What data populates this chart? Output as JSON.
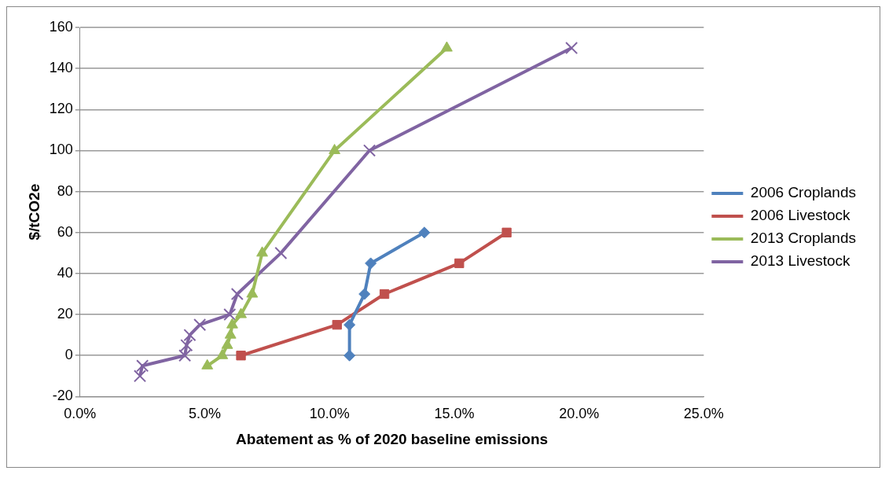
{
  "chart_data": {
    "type": "line",
    "xlabel": "Abatement as % of 2020 baseline emissions",
    "ylabel": "$/tCO2e",
    "xlim": [
      0,
      25
    ],
    "xticks": [
      {
        "value": 0,
        "label": "0.0%"
      },
      {
        "value": 5,
        "label": "5.0%"
      },
      {
        "value": 10,
        "label": "10.0%"
      },
      {
        "value": 15,
        "label": "15.0%"
      },
      {
        "value": 20,
        "label": "20.0%"
      },
      {
        "value": 25,
        "label": "25.0%"
      }
    ],
    "ylim": [
      -20,
      160
    ],
    "yticks": [
      -20,
      0,
      20,
      40,
      60,
      80,
      100,
      120,
      140,
      160
    ],
    "grid": "y",
    "legend": "right",
    "series": [
      {
        "name": "2006 Croplands",
        "color": "#4f81bd",
        "marker": "diamond",
        "x": [
          10.8,
          10.8,
          11.4,
          11.65,
          13.8
        ],
        "values": [
          0,
          15,
          30,
          45,
          60
        ]
      },
      {
        "name": "2006 Livestock",
        "color": "#c0504d",
        "marker": "square",
        "x": [
          6.45,
          10.3,
          12.2,
          15.2,
          17.1
        ],
        "values": [
          0,
          15,
          30,
          45,
          60
        ]
      },
      {
        "name": "2013 Croplands",
        "color": "#9bbb59",
        "marker": "triangle",
        "x": [
          5.1,
          5.7,
          5.9,
          6.03,
          6.1,
          6.45,
          6.9,
          7.3,
          10.2,
          14.7
        ],
        "values": [
          -5,
          0,
          5,
          10,
          15,
          20,
          30,
          50,
          100,
          150
        ]
      },
      {
        "name": "2013 Livestock",
        "color": "#8064a2",
        "marker": "cross",
        "x": [
          2.4,
          2.5,
          4.2,
          4.27,
          4.4,
          4.8,
          6.0,
          6.3,
          8.05,
          11.6,
          19.7
        ],
        "values": [
          -10,
          -5,
          0,
          5,
          10,
          15,
          20,
          30,
          50,
          100,
          150
        ]
      }
    ]
  }
}
